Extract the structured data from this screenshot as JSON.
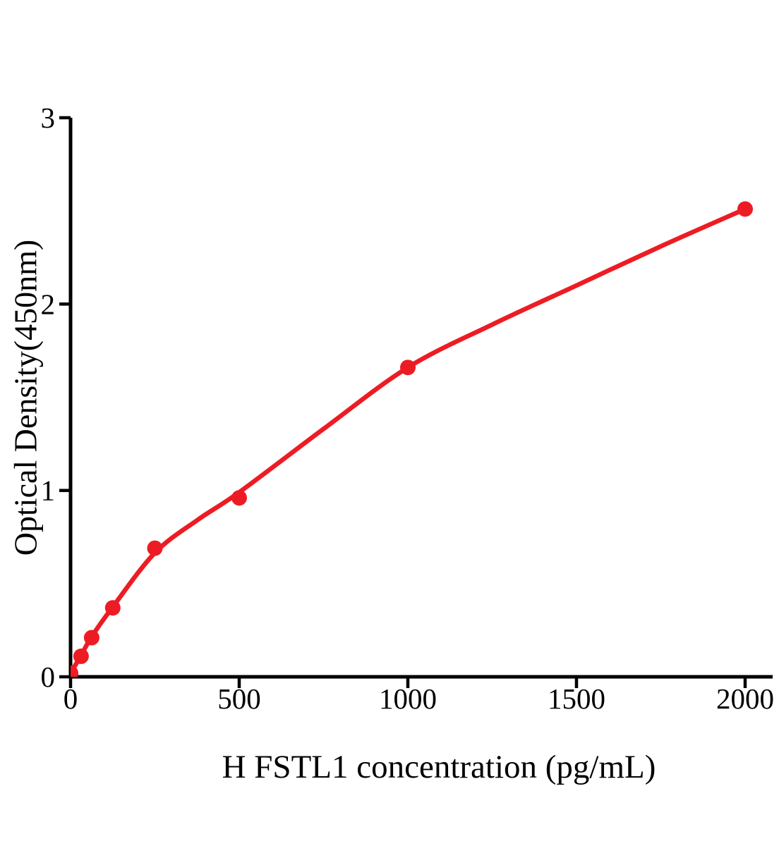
{
  "chart_data": {
    "type": "scatter",
    "title": "",
    "xlabel": "H FSTL1 concentration (pg/mL)",
    "ylabel": "Optical Density(450nm)",
    "x_ticks": [
      0,
      500,
      1000,
      1500,
      2000
    ],
    "y_ticks": [
      0,
      1,
      2,
      3
    ],
    "xlim": [
      0,
      2080
    ],
    "ylim": [
      0,
      3
    ],
    "grid": false,
    "legend": "none",
    "axis_color": "#000000",
    "series": [
      {
        "name": "fitted-standard-curve",
        "type": "line",
        "color": "#ed1c24",
        "points": [
          [
            0,
            0.02
          ],
          [
            31.25,
            0.115
          ],
          [
            62.5,
            0.215
          ],
          [
            125,
            0.375
          ],
          [
            250,
            0.665
          ],
          [
            375,
            0.84
          ],
          [
            500,
            0.99
          ],
          [
            750,
            1.33
          ],
          [
            1000,
            1.66
          ],
          [
            1250,
            1.89
          ],
          [
            1500,
            2.1
          ],
          [
            1750,
            2.31
          ],
          [
            2000,
            2.51
          ]
        ]
      },
      {
        "name": "standard-points",
        "type": "scatter",
        "color": "#ed1c24",
        "points": [
          [
            0,
            0.02
          ],
          [
            31.25,
            0.11
          ],
          [
            62.5,
            0.21
          ],
          [
            125,
            0.37
          ],
          [
            250,
            0.69
          ],
          [
            500,
            0.96
          ],
          [
            1000,
            1.66
          ],
          [
            2000,
            2.51
          ]
        ]
      }
    ]
  }
}
